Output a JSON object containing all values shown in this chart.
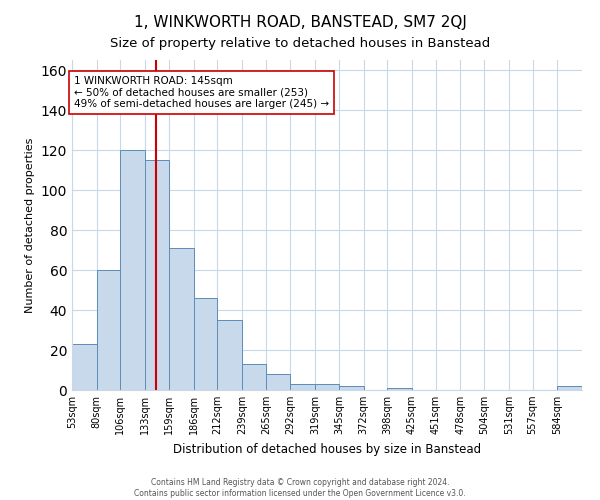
{
  "title": "1, WINKWORTH ROAD, BANSTEAD, SM7 2QJ",
  "subtitle": "Size of property relative to detached houses in Banstead",
  "xlabel": "Distribution of detached houses by size in Banstead",
  "ylabel": "Number of detached properties",
  "bar_labels": [
    "53sqm",
    "80sqm",
    "106sqm",
    "133sqm",
    "159sqm",
    "186sqm",
    "212sqm",
    "239sqm",
    "265sqm",
    "292sqm",
    "319sqm",
    "345sqm",
    "372sqm",
    "398sqm",
    "425sqm",
    "451sqm",
    "478sqm",
    "504sqm",
    "531sqm",
    "557sqm",
    "584sqm"
  ],
  "bar_values": [
    23,
    60,
    120,
    115,
    71,
    46,
    35,
    13,
    8,
    3,
    3,
    2,
    0,
    1,
    0,
    0,
    0,
    0,
    0,
    0,
    2
  ],
  "bin_edges": [
    53,
    80,
    106,
    133,
    159,
    186,
    212,
    239,
    265,
    292,
    319,
    345,
    372,
    398,
    425,
    451,
    478,
    504,
    531,
    557,
    584,
    611
  ],
  "bar_facecolor": "#c9d9ec",
  "bar_edgecolor": "#5b8db8",
  "vline_x": 145,
  "vline_color": "#cc0000",
  "annotation_title": "1 WINKWORTH ROAD: 145sqm",
  "annotation_line1": "← 50% of detached houses are smaller (253)",
  "annotation_line2": "49% of semi-detached houses are larger (245) →",
  "ylim": [
    0,
    165
  ],
  "footer_line1": "Contains HM Land Registry data © Crown copyright and database right 2024.",
  "footer_line2": "Contains public sector information licensed under the Open Government Licence v3.0.",
  "bg_color": "#ffffff",
  "grid_color": "#c8d8e8",
  "title_fontsize": 11,
  "subtitle_fontsize": 9.5
}
